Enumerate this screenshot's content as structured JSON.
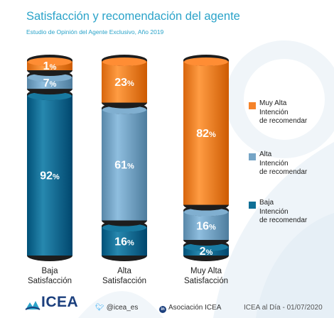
{
  "header": {
    "title": "Satisfacción y recomendación del agente",
    "subtitle": "Estudio de Opinión del Agente Exclusivo, Año 2019"
  },
  "colors": {
    "low": "#0e6f96",
    "mid": "#76a5c6",
    "high": "#f5832a",
    "title": "#2aa3c9"
  },
  "chart_data": {
    "type": "bar",
    "stacked": true,
    "unit": "%",
    "categories": [
      "Baja\nSatisfacción",
      "Alta\nSatisfacción",
      "Muy Alta\nSatisfacción"
    ],
    "series": [
      {
        "name": "Baja\nIntención\nde recomendar",
        "values": [
          92,
          16,
          2
        ],
        "color": "#0e6f96"
      },
      {
        "name": "Alta\nIntención\nde recomendar",
        "values": [
          7,
          61,
          16
        ],
        "color": "#76a5c6"
      },
      {
        "name": "Muy Alta\nIntención\nde recomendar",
        "values": [
          1,
          23,
          82
        ],
        "color": "#f5832a"
      }
    ],
    "data_labels": [
      [
        "92",
        "7",
        "1"
      ],
      [
        "16",
        "61",
        "23"
      ],
      [
        "2",
        "16",
        "82"
      ]
    ],
    "legend_position": "right"
  },
  "footer": {
    "logo": "ICEA",
    "twitter": "@icea_es",
    "linkedin": "Asociación ICEA",
    "source_date": "ICEA al Día - 01/07/2020"
  }
}
